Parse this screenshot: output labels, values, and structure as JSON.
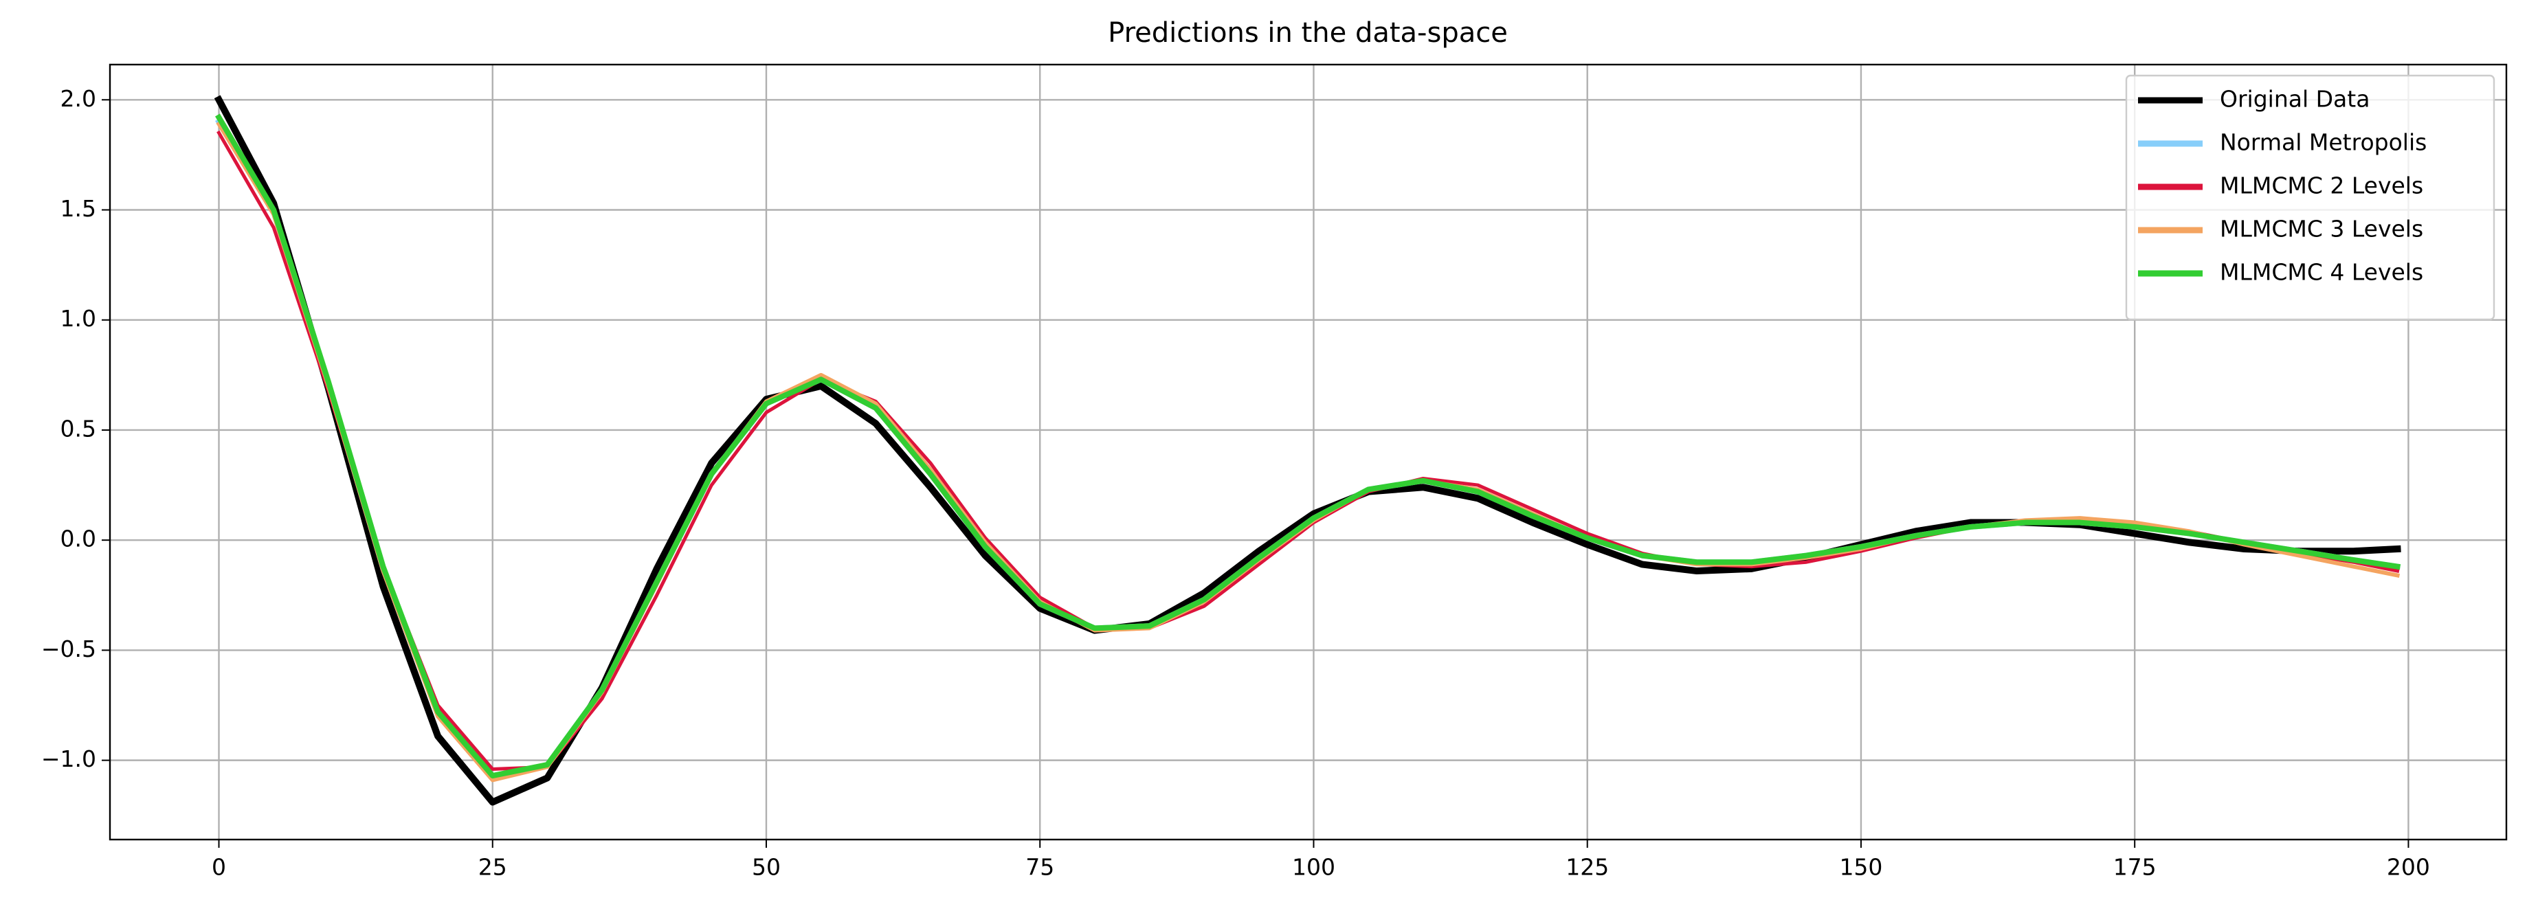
{
  "chart_data": {
    "type": "line",
    "title": "Predictions in the data-space",
    "x": [
      0,
      5,
      10,
      15,
      20,
      25,
      30,
      35,
      40,
      45,
      50,
      55,
      60,
      65,
      70,
      75,
      80,
      85,
      90,
      95,
      100,
      105,
      110,
      115,
      120,
      125,
      130,
      135,
      140,
      145,
      150,
      155,
      160,
      165,
      170,
      175,
      180,
      185,
      190,
      195,
      199
    ],
    "series": [
      {
        "name": "Original Data",
        "color": "#000000",
        "values": [
          2.0,
          1.53,
          0.69,
          -0.21,
          -0.89,
          -1.19,
          -1.08,
          -0.67,
          -0.13,
          0.35,
          0.64,
          0.7,
          0.53,
          0.24,
          -0.07,
          -0.31,
          -0.41,
          -0.38,
          -0.24,
          -0.05,
          0.12,
          0.22,
          0.24,
          0.19,
          0.08,
          -0.02,
          -0.11,
          -0.14,
          -0.13,
          -0.08,
          -0.02,
          0.04,
          0.08,
          0.08,
          0.07,
          0.03,
          -0.01,
          -0.04,
          -0.05,
          -0.05,
          -0.04
        ]
      },
      {
        "name": "Normal Metropolis",
        "color": "#87cefa",
        "values": [
          1.9,
          1.49,
          0.71,
          -0.13,
          -0.79,
          -1.08,
          -1.02,
          -0.68,
          -0.19,
          0.3,
          0.62,
          0.73,
          0.6,
          0.3,
          -0.03,
          -0.29,
          -0.4,
          -0.39,
          -0.27,
          -0.08,
          0.1,
          0.23,
          0.27,
          0.22,
          0.11,
          0.01,
          -0.07,
          -0.1,
          -0.1,
          -0.07,
          -0.03,
          0.02,
          0.06,
          0.08,
          0.08,
          0.06,
          0.03,
          -0.01,
          -0.05,
          -0.09,
          -0.12
        ]
      },
      {
        "name": "MLMCMC 2 Levels",
        "color": "#dc143c",
        "values": [
          1.85,
          1.42,
          0.68,
          -0.12,
          -0.75,
          -1.04,
          -1.03,
          -0.72,
          -0.25,
          0.25,
          0.58,
          0.73,
          0.63,
          0.35,
          0.01,
          -0.26,
          -0.4,
          -0.4,
          -0.3,
          -0.11,
          0.08,
          0.22,
          0.28,
          0.25,
          0.14,
          0.03,
          -0.06,
          -0.11,
          -0.12,
          -0.1,
          -0.05,
          0.01,
          0.06,
          0.09,
          0.1,
          0.08,
          0.04,
          -0.01,
          -0.06,
          -0.1,
          -0.14
        ]
      },
      {
        "name": "MLMCMC 3 Levels",
        "color": "#f4a460",
        "values": [
          1.89,
          1.48,
          0.7,
          -0.14,
          -0.8,
          -1.09,
          -1.03,
          -0.69,
          -0.2,
          0.3,
          0.63,
          0.75,
          0.62,
          0.32,
          -0.01,
          -0.28,
          -0.41,
          -0.4,
          -0.28,
          -0.09,
          0.09,
          0.23,
          0.27,
          0.23,
          0.12,
          0.01,
          -0.07,
          -0.11,
          -0.11,
          -0.08,
          -0.04,
          0.02,
          0.06,
          0.09,
          0.1,
          0.08,
          0.04,
          -0.02,
          -0.07,
          -0.12,
          -0.16
        ]
      },
      {
        "name": "MLMCMC 4 Levels",
        "color": "#32cd32",
        "values": [
          1.92,
          1.5,
          0.72,
          -0.12,
          -0.78,
          -1.07,
          -1.02,
          -0.68,
          -0.19,
          0.3,
          0.62,
          0.73,
          0.6,
          0.3,
          -0.03,
          -0.29,
          -0.4,
          -0.39,
          -0.27,
          -0.08,
          0.1,
          0.23,
          0.27,
          0.22,
          0.11,
          0.01,
          -0.07,
          -0.1,
          -0.1,
          -0.07,
          -0.03,
          0.02,
          0.06,
          0.08,
          0.08,
          0.06,
          0.03,
          -0.01,
          -0.05,
          -0.09,
          -0.12
        ]
      }
    ],
    "xlim": [
      -9.95,
      208.95
    ],
    "xticks": [
      0,
      25,
      50,
      75,
      100,
      125,
      150,
      175,
      200
    ],
    "ylim": [
      -1.36,
      2.16
    ],
    "yticks": [
      {
        "value": -1,
        "label": "−1.0"
      },
      {
        "value": -0.5,
        "label": "−0.5"
      },
      {
        "value": 0,
        "label": "0.0"
      },
      {
        "value": 0.5,
        "label": "0.5"
      },
      {
        "value": 1,
        "label": "1.0"
      },
      {
        "value": 1.5,
        "label": "1.5"
      },
      {
        "value": 2,
        "label": "2.0"
      }
    ],
    "grid": true,
    "legend": "upper right"
  }
}
